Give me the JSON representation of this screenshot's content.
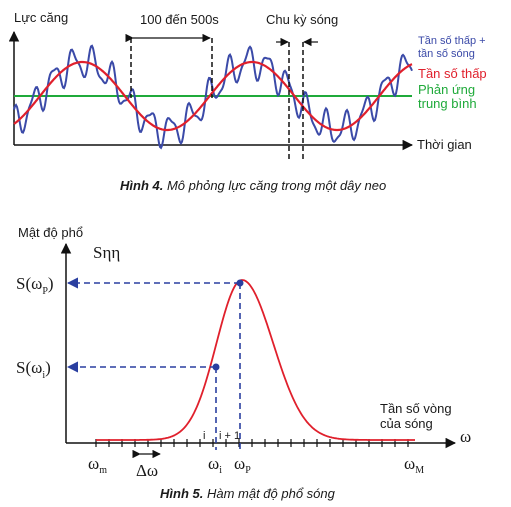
{
  "fig4": {
    "y_label": "Lực căng",
    "range_label": "100 đến 500s",
    "period_label": "Chu kỳ sóng",
    "legend_high_1": "Tần số thấp +",
    "legend_high_2": "tần số sóng",
    "legend_low": "Tần số thấp",
    "legend_mean_1": "Phản ứng",
    "legend_mean_2": "trung bình",
    "x_label": "Thời gian",
    "caption_bold": "Hình 4.",
    "caption_text": " Mô phỏng lực căng trong một dây neo",
    "colors": {
      "high": "#3b4aa8",
      "low": "#e0202c",
      "mean": "#1faa3a"
    }
  },
  "fig5": {
    "y_label": "Mật độ phổ",
    "s_label": "Sηη",
    "s_wp_main": "S(ω",
    "s_wp_sub": "P",
    "s_wi_main": "S(ω",
    "s_wi_sub": "i",
    "close_paren": ")",
    "omega_axis": "ω",
    "freq_label_1": "Tần số vòng",
    "freq_label_2": "của sóng",
    "tick_i": "i",
    "tick_i1": "i + 1",
    "wm_main": "ω",
    "wm_sub": "m",
    "dw_label": "Δω",
    "wi_main": "ω",
    "wi_sub": "i",
    "wp_main": "ω",
    "wp_sub": "P",
    "wM_main": "ω",
    "wM_sub": "M",
    "caption_bold": "Hình 5.",
    "caption_text": " Hàm mật độ phổ sóng",
    "colors": {
      "curve": "#e0202c",
      "guide": "#2a3fa0"
    }
  }
}
